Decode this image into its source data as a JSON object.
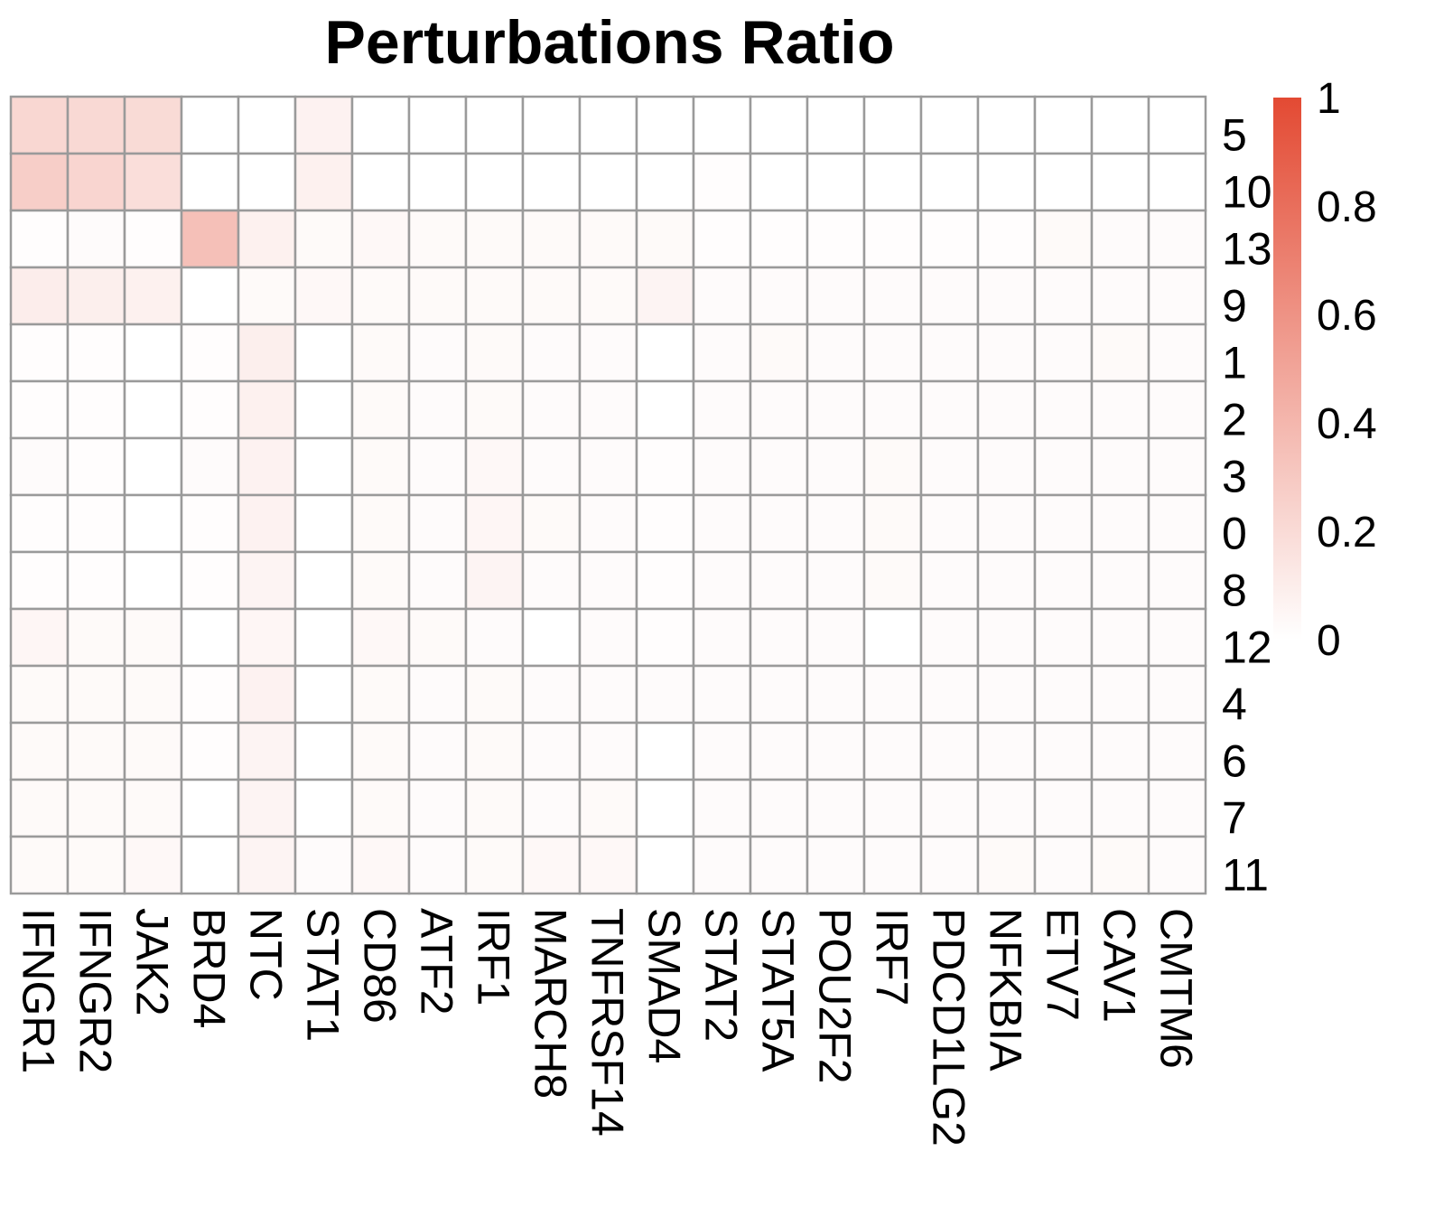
{
  "chart_data": {
    "type": "heatmap",
    "title": "Perturbations Ratio",
    "columns": [
      "IFNGR1",
      "IFNGR2",
      "JAK2",
      "BRD4",
      "NTC",
      "STAT1",
      "CD86",
      "ATF2",
      "IRF1",
      "MARCH8",
      "TNFRSF14",
      "SMAD4",
      "STAT2",
      "STAT5A",
      "POU2F2",
      "IRF7",
      "PDCD1LG2",
      "NFKBIA",
      "ETV7",
      "CAV1",
      "CMTM6"
    ],
    "rows": [
      "5",
      "10",
      "13",
      "9",
      "1",
      "2",
      "3",
      "0",
      "8",
      "12",
      "4",
      "6",
      "7",
      "11"
    ],
    "values": [
      [
        0.22,
        0.21,
        0.2,
        0.0,
        0.0,
        0.07,
        0.0,
        0.0,
        0.0,
        0.0,
        0.0,
        0.0,
        0.0,
        0.0,
        0.0,
        0.0,
        0.0,
        0.0,
        0.0,
        0.0,
        0.0
      ],
      [
        0.27,
        0.23,
        0.18,
        0.0,
        0.0,
        0.08,
        0.0,
        0.0,
        0.0,
        0.0,
        0.0,
        0.0,
        0.01,
        0.0,
        0.0,
        0.0,
        0.0,
        0.0,
        0.0,
        0.0,
        0.0
      ],
      [
        0.01,
        0.02,
        0.01,
        0.35,
        0.08,
        0.03,
        0.04,
        0.03,
        0.03,
        0.03,
        0.03,
        0.03,
        0.01,
        0.01,
        0.01,
        0.01,
        0.01,
        0.01,
        0.03,
        0.02,
        0.02
      ],
      [
        0.1,
        0.09,
        0.08,
        0.0,
        0.03,
        0.04,
        0.03,
        0.03,
        0.03,
        0.03,
        0.03,
        0.06,
        0.02,
        0.02,
        0.02,
        0.02,
        0.02,
        0.02,
        0.02,
        0.02,
        0.02
      ],
      [
        0.01,
        0.01,
        0.0,
        0.01,
        0.09,
        0.0,
        0.03,
        0.02,
        0.03,
        0.02,
        0.02,
        0.0,
        0.02,
        0.03,
        0.02,
        0.02,
        0.02,
        0.02,
        0.02,
        0.03,
        0.02
      ],
      [
        0.01,
        0.01,
        0.0,
        0.01,
        0.08,
        0.0,
        0.03,
        0.02,
        0.03,
        0.02,
        0.02,
        0.0,
        0.02,
        0.02,
        0.02,
        0.02,
        0.02,
        0.02,
        0.02,
        0.02,
        0.02
      ],
      [
        0.02,
        0.01,
        0.0,
        0.02,
        0.07,
        0.0,
        0.03,
        0.02,
        0.04,
        0.02,
        0.02,
        0.01,
        0.02,
        0.02,
        0.02,
        0.03,
        0.02,
        0.02,
        0.02,
        0.02,
        0.02
      ],
      [
        0.01,
        0.01,
        0.0,
        0.01,
        0.07,
        0.0,
        0.03,
        0.02,
        0.05,
        0.03,
        0.02,
        0.01,
        0.02,
        0.02,
        0.02,
        0.03,
        0.02,
        0.02,
        0.02,
        0.02,
        0.02
      ],
      [
        0.01,
        0.01,
        0.0,
        0.01,
        0.06,
        0.0,
        0.03,
        0.02,
        0.06,
        0.02,
        0.02,
        0.01,
        0.02,
        0.02,
        0.02,
        0.03,
        0.02,
        0.02,
        0.02,
        0.02,
        0.02
      ],
      [
        0.05,
        0.03,
        0.03,
        0.0,
        0.05,
        0.0,
        0.04,
        0.03,
        0.02,
        0.0,
        0.02,
        0.01,
        0.02,
        0.02,
        0.02,
        0.0,
        0.02,
        0.02,
        0.02,
        0.02,
        0.02
      ],
      [
        0.03,
        0.03,
        0.03,
        0.01,
        0.07,
        0.0,
        0.03,
        0.02,
        0.03,
        0.02,
        0.02,
        0.02,
        0.02,
        0.02,
        0.02,
        0.02,
        0.02,
        0.02,
        0.02,
        0.02,
        0.02
      ],
      [
        0.03,
        0.03,
        0.03,
        0.01,
        0.06,
        0.0,
        0.03,
        0.02,
        0.03,
        0.02,
        0.02,
        0.0,
        0.02,
        0.02,
        0.02,
        0.02,
        0.02,
        0.02,
        0.02,
        0.02,
        0.02
      ],
      [
        0.03,
        0.03,
        0.03,
        0.0,
        0.06,
        0.0,
        0.03,
        0.02,
        0.03,
        0.02,
        0.03,
        0.0,
        0.02,
        0.02,
        0.02,
        0.02,
        0.02,
        0.02,
        0.02,
        0.02,
        0.02
      ],
      [
        0.03,
        0.03,
        0.04,
        0.0,
        0.06,
        0.02,
        0.04,
        0.02,
        0.03,
        0.04,
        0.04,
        0.0,
        0.02,
        0.02,
        0.02,
        0.02,
        0.02,
        0.03,
        0.02,
        0.03,
        0.02
      ]
    ],
    "legend": {
      "min": 0,
      "max": 1,
      "ticks": [
        "0",
        "0.2",
        "0.4",
        "0.6",
        "0.8",
        "1"
      ],
      "color_low": "#ffffff",
      "color_high": "#e34a33"
    },
    "grid": true
  }
}
